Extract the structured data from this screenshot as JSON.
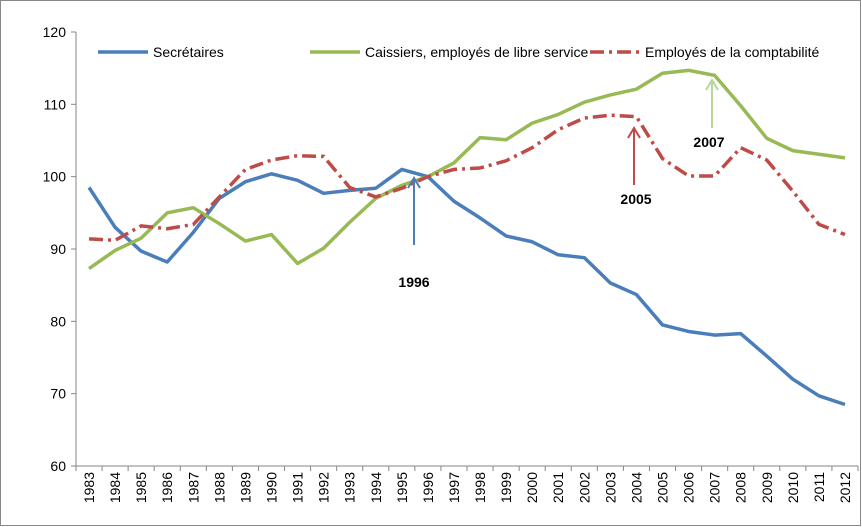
{
  "chart_data": {
    "type": "line",
    "categories": [
      "1983",
      "1984",
      "1985",
      "1986",
      "1987",
      "1988",
      "1989",
      "1990",
      "1991",
      "1992",
      "1993",
      "1994",
      "1995",
      "1996",
      "1997",
      "1998",
      "1999",
      "2000",
      "2001",
      "2002",
      "2003",
      "2004",
      "2005",
      "2006",
      "2007",
      "2008",
      "2009",
      "2010",
      "2011",
      "2012"
    ],
    "series": [
      {
        "name": "Secrétaires",
        "color": "#4a7ebb",
        "dash": "solid",
        "values": [
          98.5,
          93,
          89.7,
          88.2,
          92.3,
          97,
          99.3,
          100.4,
          99.5,
          97.7,
          98.1,
          98.4,
          101,
          100,
          96.6,
          94.3,
          91.8,
          91,
          89.2,
          88.8,
          85.3,
          83.7,
          79.5,
          78.6,
          78.1,
          78.3,
          75.2,
          72,
          69.7,
          68.5
        ]
      },
      {
        "name": "Caissiers, employés de libre service",
        "color": "#98b954",
        "dash": "solid",
        "values": [
          87.3,
          89.8,
          91.5,
          95,
          95.7,
          93.5,
          91.1,
          92,
          88,
          90.1,
          93.7,
          97,
          98.8,
          100,
          101.9,
          105.4,
          105.1,
          107.4,
          108.6,
          110.3,
          111.3,
          112.1,
          114.3,
          114.7,
          114,
          109.8,
          105.3,
          103.6,
          103.1,
          102.6
        ]
      },
      {
        "name": "Employés de la comptabilité",
        "color": "#be4b48",
        "dash": "dashdot",
        "values": [
          91.4,
          91.2,
          93.2,
          92.8,
          93.4,
          97.2,
          101,
          102.3,
          102.9,
          102.8,
          98.5,
          97.2,
          98.4,
          100,
          101,
          101.2,
          102.2,
          104,
          106.5,
          108.1,
          108.5,
          108.3,
          102.5,
          100.1,
          100.1,
          104,
          102.3,
          98,
          93.4,
          92
        ]
      }
    ],
    "ylim": [
      60,
      120
    ],
    "yticks": [
      60,
      70,
      80,
      90,
      100,
      110,
      120
    ],
    "grid": false,
    "legend": "top",
    "annotations": [
      {
        "text": "1996",
        "color": "#4a7ebb"
      },
      {
        "text": "2005",
        "color": "#be4b48"
      },
      {
        "text": "2007",
        "color": "#b5d89a"
      }
    ]
  }
}
